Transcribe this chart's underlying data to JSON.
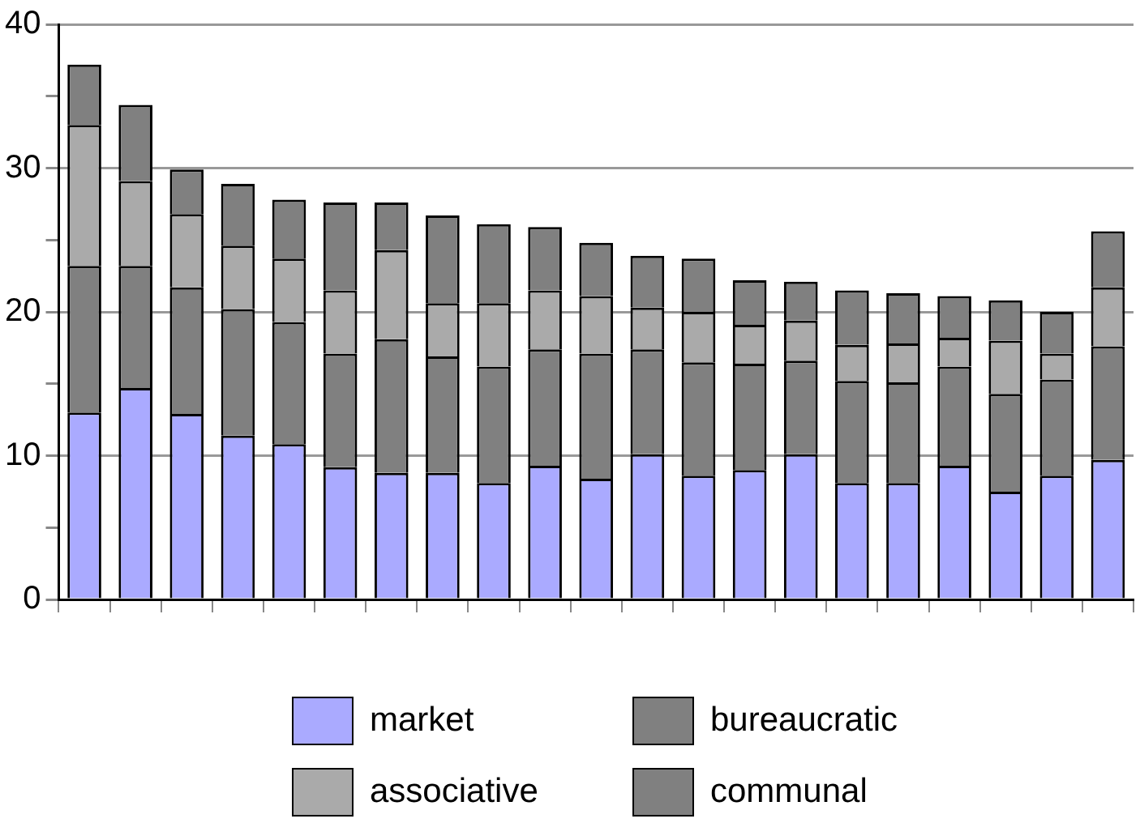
{
  "chart_data": {
    "type": "bar",
    "stacked": true,
    "categories": [
      null,
      null,
      null,
      null,
      null,
      null,
      null,
      null,
      null,
      null,
      null,
      null,
      null,
      null,
      null,
      null,
      null,
      null,
      null,
      null,
      null
    ],
    "series": [
      {
        "name": "market",
        "color": "#aaaaff",
        "values": [
          13.0,
          14.7,
          12.9,
          11.4,
          10.8,
          9.2,
          8.8,
          8.8,
          8.1,
          9.3,
          8.4,
          10.1,
          8.6,
          9.0,
          10.1,
          8.1,
          8.1,
          9.3,
          7.5,
          8.6,
          9.7
        ]
      },
      {
        "name": "bureaucratic",
        "color": "#808080",
        "values": [
          10.2,
          8.5,
          8.8,
          8.8,
          8.5,
          7.9,
          9.3,
          8.1,
          8.1,
          8.1,
          8.7,
          7.3,
          7.9,
          7.4,
          6.5,
          7.1,
          7.0,
          6.9,
          6.8,
          6.7,
          7.9
        ]
      },
      {
        "name": "associative",
        "color": "#aaaaaa",
        "values": [
          9.8,
          5.9,
          5.1,
          4.4,
          4.4,
          4.4,
          6.2,
          3.7,
          4.4,
          4.1,
          4.0,
          2.9,
          3.5,
          2.7,
          2.8,
          2.5,
          2.7,
          2.0,
          3.7,
          1.8,
          4.1
        ]
      },
      {
        "name": "communal",
        "color": "#808080",
        "values": [
          4.2,
          5.3,
          3.1,
          4.3,
          4.1,
          6.1,
          3.3,
          6.1,
          5.5,
          4.4,
          3.7,
          3.6,
          3.7,
          3.1,
          2.7,
          3.8,
          3.5,
          2.9,
          2.8,
          2.9,
          3.9
        ]
      }
    ],
    "ylim": [
      0,
      40
    ],
    "yticks": [
      0,
      {
        "value": 5,
        "label": null
      },
      10,
      {
        "value": 15,
        "label": null
      },
      20,
      {
        "value": 25,
        "label": null
      },
      30,
      {
        "value": 35,
        "label": null
      },
      40
    ],
    "grid": "y",
    "legend": "bottom"
  }
}
